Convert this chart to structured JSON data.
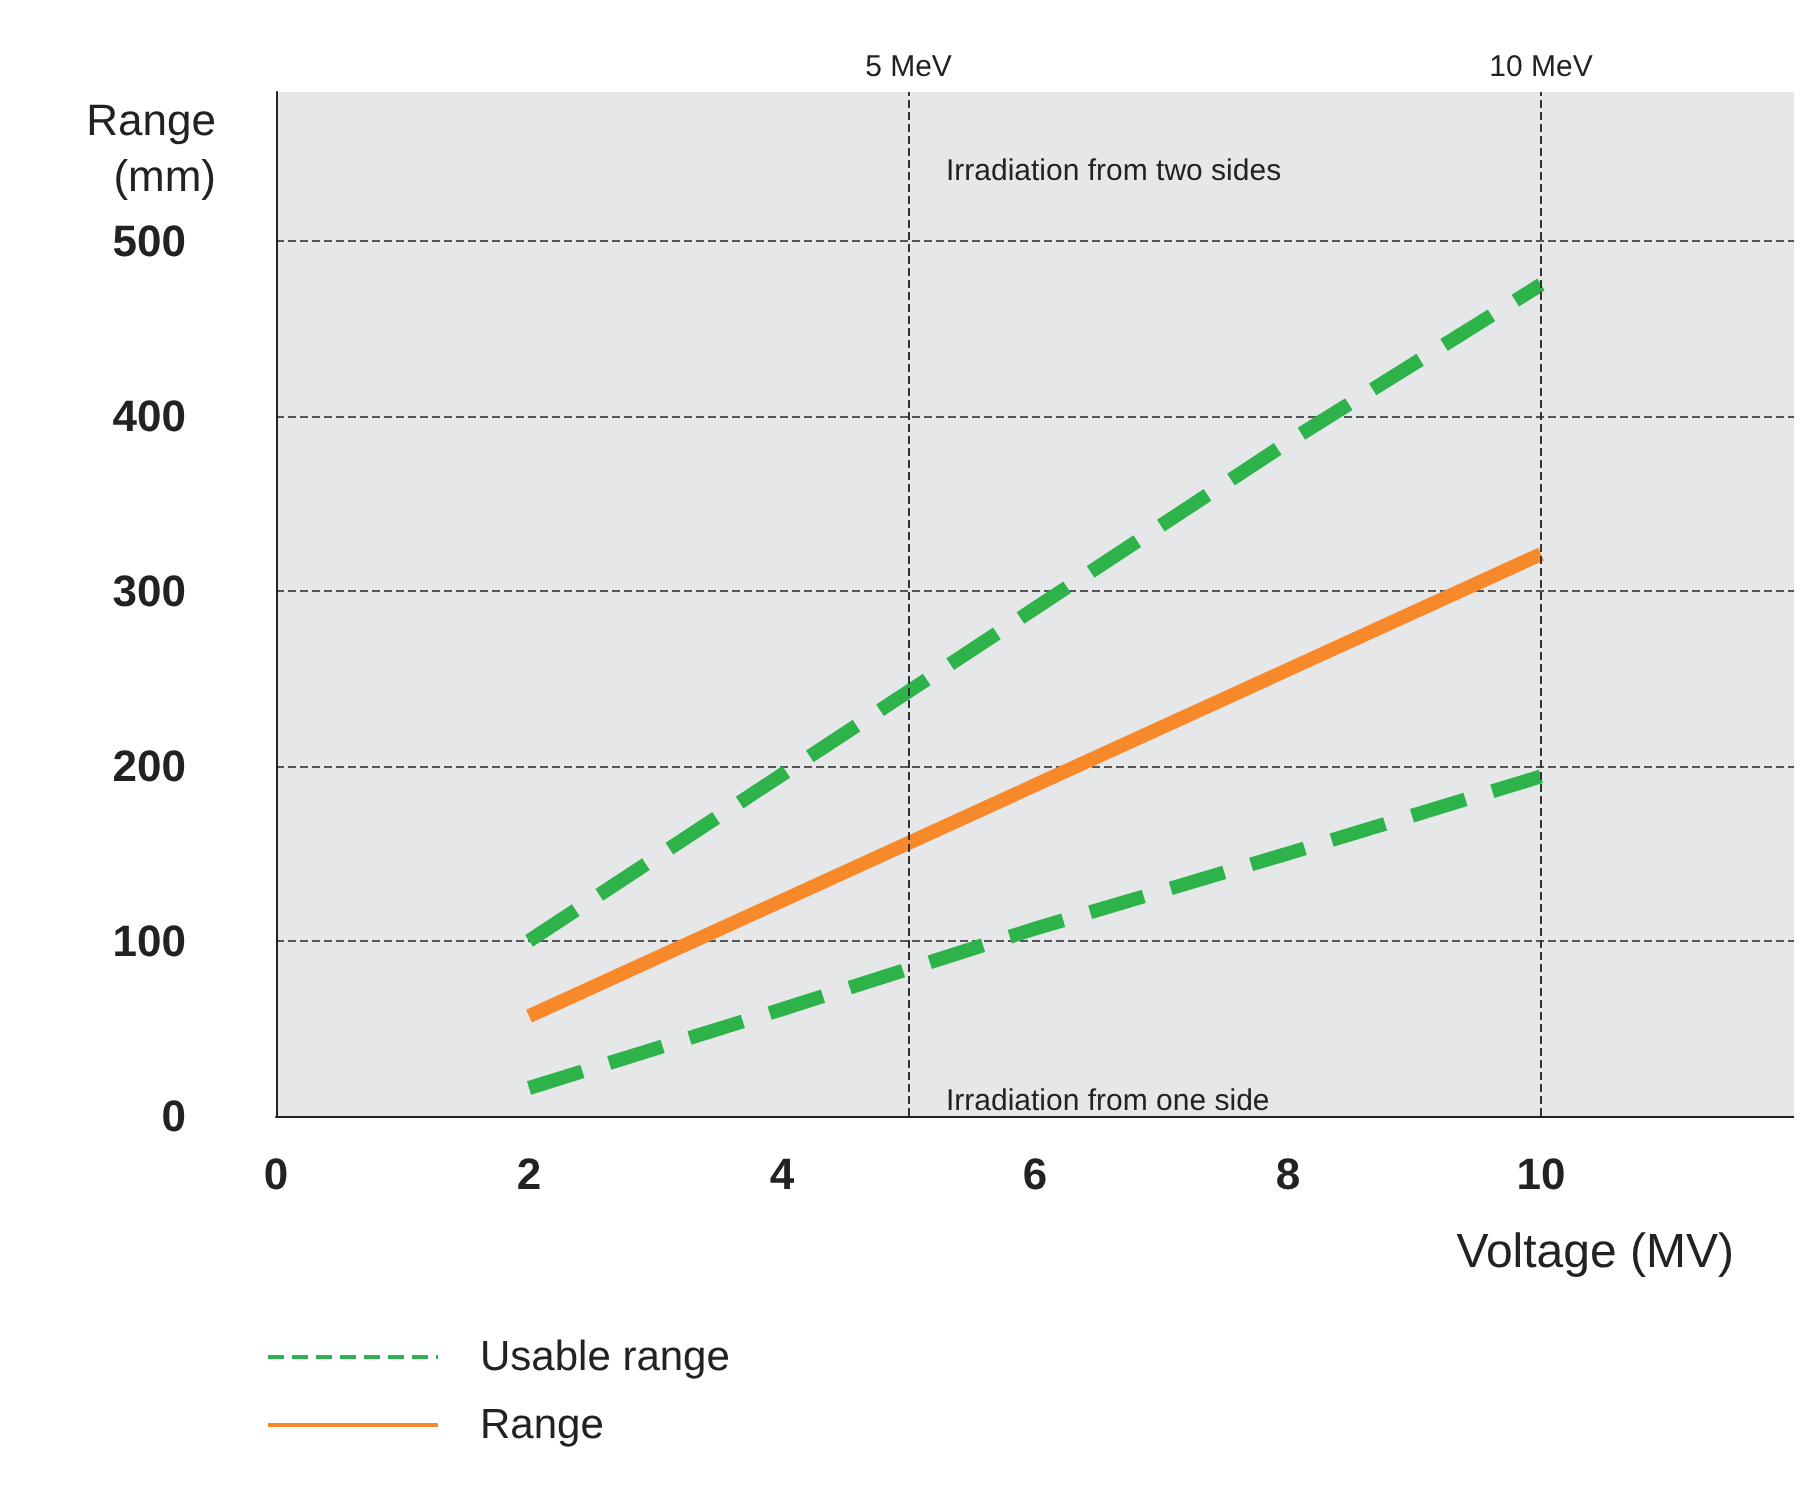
{
  "chart_data": {
    "type": "line",
    "xlabel": "Voltage (MV)",
    "ylabel": "Range\n(mm)",
    "xlim": [
      0,
      12
    ],
    "xticks": [
      0,
      2,
      4,
      6,
      8,
      10
    ],
    "ylim": [
      0,
      585
    ],
    "yticks": [
      0,
      100,
      200,
      300,
      400,
      500
    ],
    "grid": "y",
    "legend": "bottom left",
    "marker": "none",
    "series": [
      {
        "name": "Usable range",
        "color": "#2db34a",
        "line_style": "dashed",
        "x": [
          2,
          4,
          6,
          8,
          10
        ],
        "values": [
          100,
          195,
          290,
          385,
          475
        ]
      },
      {
        "color": "#2db34a",
        "line_style": "dashed",
        "x": [
          2,
          4,
          6,
          8,
          10
        ],
        "values": [
          16,
          61,
          107,
          150,
          194
        ]
      },
      {
        "name": "Range",
        "color": "#f7892a",
        "line_style": "solid",
        "x": [
          2,
          6,
          10
        ],
        "values": [
          57,
          189,
          321
        ]
      }
    ],
    "ref_lines": [
      {
        "axis": "x",
        "value": 5,
        "label": "5 MeV",
        "line_style": "dashed",
        "color": "#333333"
      },
      {
        "axis": "x",
        "value": 10,
        "label": "10 MeV",
        "line_style": "dashed",
        "color": "#333333"
      }
    ],
    "annotations": [
      "Irradiation from two sides",
      "Irradiation from one side"
    ]
  }
}
